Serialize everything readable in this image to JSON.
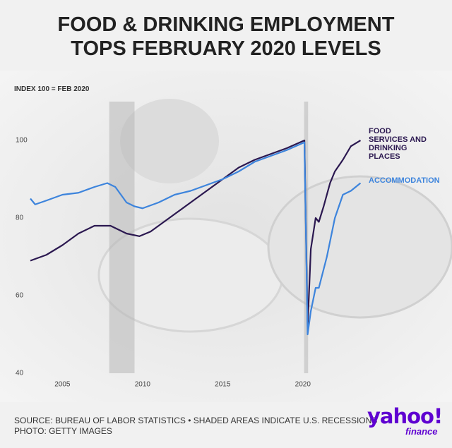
{
  "chart_data": {
    "type": "line",
    "title": "FOOD & DRINKING EMPLOYMENT TOPS FEBRUARY 2020 LEVELS",
    "y_label": "INDEX 100 = FEB 2020",
    "xlim": [
      2003,
      2023.8
    ],
    "xticks": [
      2005,
      2010,
      2015,
      2020
    ],
    "ylim": [
      40,
      110
    ],
    "yticks": [
      40,
      60,
      80,
      100
    ],
    "recessions": [
      [
        2007.92,
        2009.5
      ],
      [
        2020.08,
        2020.33
      ]
    ],
    "series": [
      {
        "name": "FOOD SERVICES AND DRINKING PLACES",
        "color": "#2b1850",
        "x": [
          2003,
          2004,
          2005,
          2006,
          2007,
          2008,
          2009,
          2009.8,
          2010.5,
          2011,
          2012,
          2013,
          2014,
          2015,
          2016,
          2017,
          2018,
          2019,
          2020.1,
          2020.3,
          2020.5,
          2020.8,
          2021.0,
          2021.3,
          2021.7,
          2022,
          2022.5,
          2023,
          2023.6
        ],
        "values": [
          69,
          70.5,
          73,
          76,
          78,
          78,
          76,
          75.3,
          76.5,
          78,
          81,
          84,
          87,
          90,
          93,
          95,
          96.5,
          98,
          100,
          52,
          72,
          80,
          79,
          83,
          89,
          92,
          95,
          98.5,
          100
        ]
      },
      {
        "name": "ACCOMMODATION",
        "color": "#3d84dc",
        "x": [
          2003,
          2003.3,
          2004,
          2005,
          2006,
          2007,
          2007.8,
          2008.3,
          2009,
          2009.5,
          2010,
          2011,
          2012,
          2013,
          2014,
          2015,
          2016,
          2017,
          2018,
          2019,
          2020.1,
          2020.3,
          2020.5,
          2020.8,
          2021.0,
          2021.5,
          2022,
          2022.5,
          2023,
          2023.6
        ],
        "values": [
          85,
          83.5,
          84.5,
          86,
          86.5,
          88,
          89,
          88,
          84,
          83,
          82.5,
          84,
          86,
          87,
          88.5,
          90,
          92,
          94.5,
          96,
          97.5,
          99.5,
          50,
          56,
          62,
          62,
          70,
          80,
          86,
          87,
          89
        ]
      }
    ],
    "source": "SOURCE: BUREAU OF LABOR STATISTICS • SHADED AREAS INDICATE U.S. RECESSIONS",
    "photo_credit": "PHOTO: GETTY IMAGES",
    "logo": "yahoo!",
    "logo_sub": "finance"
  }
}
